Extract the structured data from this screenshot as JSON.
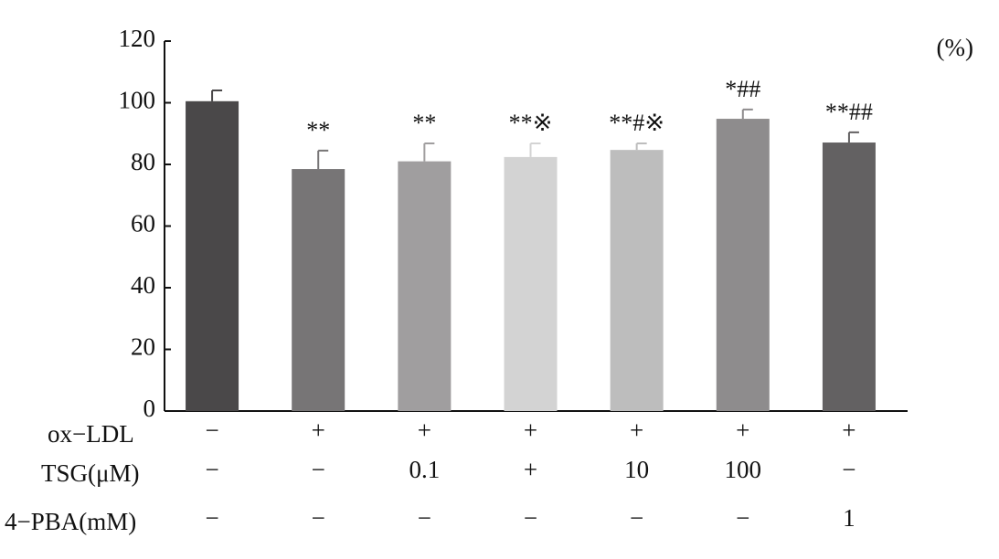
{
  "chart_data": {
    "type": "bar",
    "unit_label": "(%)",
    "values": [
      100.5,
      78.5,
      81,
      82.4,
      84.7,
      94.8,
      87.1
    ],
    "errors": [
      3.5,
      6,
      5.8,
      4.4,
      2.1,
      3,
      3.3
    ],
    "annotations": [
      null,
      "**",
      "**",
      "**※",
      "**#※",
      "*##",
      "**##"
    ],
    "colors": [
      "#4a4849",
      "#777576",
      "#a09e9f",
      "#d3d3d3",
      "#bdbdbd",
      "#8e8c8d",
      "#636162"
    ],
    "ylim": [
      0,
      120
    ],
    "yticks": [
      0,
      20,
      40,
      60,
      80,
      100,
      120
    ],
    "rows": [
      {
        "label": "ox−LDL",
        "cells": [
          "−",
          "+",
          "+",
          "+",
          "+",
          "+",
          "+"
        ]
      },
      {
        "label": "TSG(μM)",
        "cells": [
          "−",
          "−",
          "0.1",
          "+",
          "10",
          "100",
          "−"
        ]
      },
      {
        "label": "4−PBA(mM)",
        "cells": [
          "−",
          "−",
          "−",
          "−",
          "−",
          "−",
          "1"
        ]
      }
    ]
  }
}
